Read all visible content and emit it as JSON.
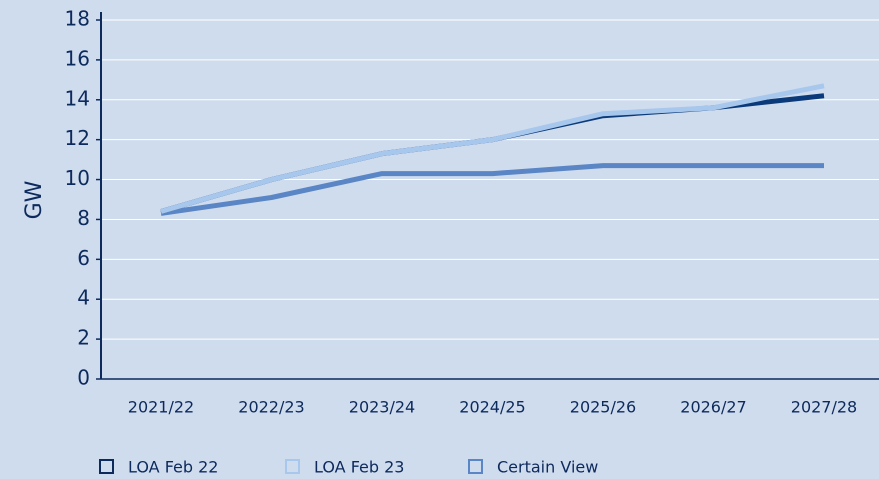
{
  "chart_data": {
    "type": "line",
    "y_label": "GW",
    "categories": [
      "2021/22",
      "2022/23",
      "2023/24",
      "2024/25",
      "2025/26",
      "2026/27",
      "2027/28"
    ],
    "series": [
      {
        "name": "LOA Feb 22",
        "color": "#0b3a7a",
        "values": [
          8.4,
          10.0,
          11.3,
          12.0,
          13.2,
          13.6,
          14.2
        ]
      },
      {
        "name": "LOA Feb 23",
        "color": "#a8c7ec",
        "values": [
          8.4,
          10.0,
          11.3,
          12.0,
          13.3,
          13.6,
          14.7
        ]
      },
      {
        "name": "Certain View",
        "color": "#5a86c6",
        "values": [
          8.3,
          9.1,
          10.3,
          10.3,
          10.7,
          10.7,
          10.7
        ]
      }
    ],
    "ylim": [
      0,
      18
    ],
    "yticks": [
      0,
      2,
      4,
      6,
      8,
      10,
      12,
      14,
      16,
      18
    ],
    "grid": true
  }
}
